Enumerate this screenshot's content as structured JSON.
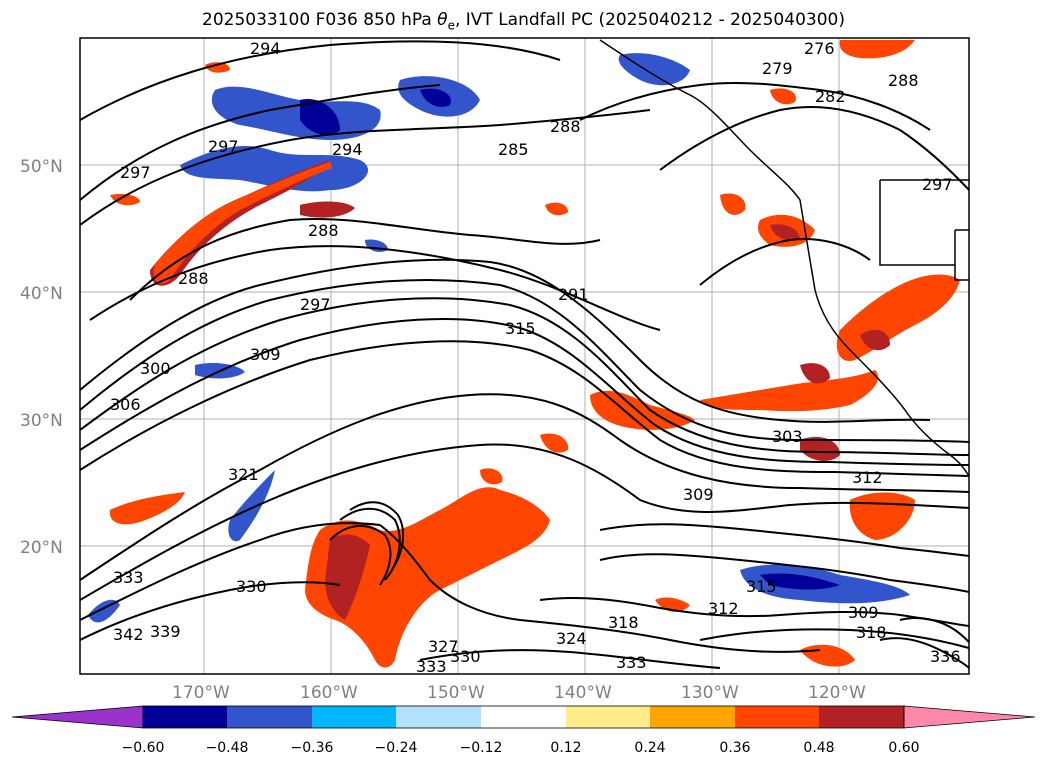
{
  "title": {
    "prefix": "2025033100 F036 850 hPa ",
    "symbol": "θ",
    "subscript": "e",
    "suffix": ", IVT Landfall PC (2025040212 - 2025040300)"
  },
  "map": {
    "lat_labels": [
      "50°N",
      "40°N",
      "30°N",
      "20°N"
    ],
    "lon_labels": [
      "170°W",
      "160°W",
      "150°W",
      "140°W",
      "130°W",
      "120°W"
    ],
    "contour_labels": [
      "294",
      "297",
      "297",
      "294",
      "288",
      "288",
      "297",
      "288",
      "285",
      "291",
      "309",
      "300",
      "306",
      "315",
      "321",
      "303",
      "312",
      "309",
      "315",
      "330",
      "327",
      "330",
      "333",
      "324",
      "318",
      "312",
      "333",
      "309",
      "318",
      "336",
      "276",
      "279",
      "282",
      "288",
      "297",
      "333",
      "342",
      "339"
    ]
  },
  "colorbar": {
    "colors": [
      "#9933cc",
      "#000099",
      "#3355cc",
      "#00b7ff",
      "#b3e2ff",
      "#ffffff",
      "#ffec8a",
      "#ffa500",
      "#ff4500",
      "#b22222",
      "#ff88aa"
    ],
    "tick_labels": [
      "−0.60",
      "−0.48",
      "−0.36",
      "−0.24",
      "−0.12",
      "0.12",
      "0.24",
      "0.36",
      "0.48",
      "0.60"
    ]
  }
}
